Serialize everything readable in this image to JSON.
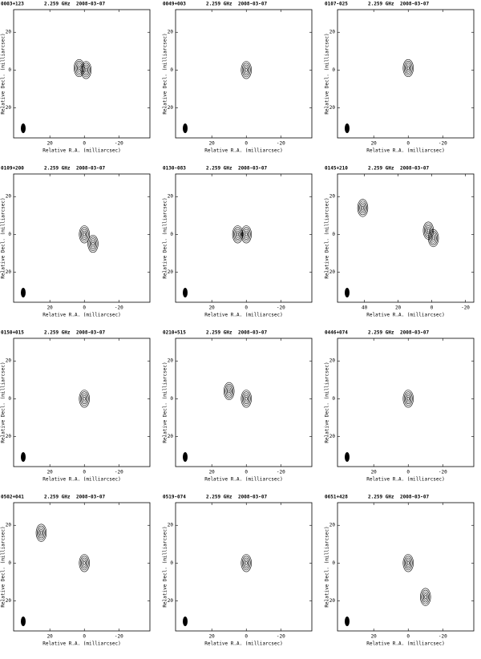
{
  "chart_data": [
    {
      "type": "contour",
      "title": "0003+123",
      "subtitle": "2.259 GHz",
      "date": "2008-03-07",
      "xlabel": "Relative R.A. (milliarcsec)",
      "ylabel": "Relative Decl. (milliarcsec)",
      "xlim": [
        41,
        -38
      ],
      "ylim": [
        -36,
        32
      ],
      "xticks": [
        20,
        0,
        -20
      ],
      "yticks": [
        20,
        0,
        -20
      ],
      "peaks": [
        {
          "x": 3,
          "y": 1
        },
        {
          "x": -1,
          "y": 0
        }
      ]
    },
    {
      "type": "contour",
      "title": "0049+003",
      "subtitle": "2.259 GHz",
      "date": "2008-03-07",
      "xlabel": "Relative R.A. (milliarcsec)",
      "ylabel": "Relative Decl. (milliarcsec)",
      "xlim": [
        41,
        -38
      ],
      "ylim": [
        -36,
        32
      ],
      "xticks": [
        20,
        0,
        -20
      ],
      "yticks": [
        20,
        0,
        -20
      ],
      "peaks": [
        {
          "x": 0,
          "y": 0
        }
      ]
    },
    {
      "type": "contour",
      "title": "0107-025",
      "subtitle": "2.259 GHz",
      "date": "2008-03-07",
      "xlabel": "Relative R.A. (milliarcsec)",
      "ylabel": "Relative Decl. (milliarcsec)",
      "xlim": [
        41,
        -38
      ],
      "ylim": [
        -36,
        32
      ],
      "xticks": [
        20,
        0,
        -20
      ],
      "yticks": [
        20,
        0,
        -20
      ],
      "peaks": [
        {
          "x": 0,
          "y": 1
        }
      ]
    },
    {
      "type": "contour",
      "title": "0109+200",
      "subtitle": "2.259 GHz",
      "date": "2008-03-07",
      "xlabel": "Relative R.A. (milliarcsec)",
      "ylabel": "Relative Decl. (milliarcsec)",
      "xlim": [
        41,
        -38
      ],
      "ylim": [
        -36,
        32
      ],
      "xticks": [
        20,
        0,
        -20
      ],
      "yticks": [
        20,
        0,
        -20
      ],
      "peaks": [
        {
          "x": 0,
          "y": 0
        },
        {
          "x": -5,
          "y": -5
        }
      ]
    },
    {
      "type": "contour",
      "title": "0130-083",
      "subtitle": "2.259 GHz",
      "date": "2008-03-07",
      "xlabel": "Relative R.A. (milliarcsec)",
      "ylabel": "Relative Decl. (milliarcsec)",
      "xlim": [
        41,
        -38
      ],
      "ylim": [
        -36,
        32
      ],
      "xticks": [
        20,
        0,
        -20
      ],
      "yticks": [
        20,
        0,
        -20
      ],
      "peaks": [
        {
          "x": 5,
          "y": 0
        },
        {
          "x": 0,
          "y": 0
        }
      ]
    },
    {
      "type": "contour",
      "title": "0145+210",
      "subtitle": "2.259 GHz",
      "date": "2008-03-07",
      "xlabel": "Relative R.A. (milliarcsec)",
      "ylabel": "Relative Decl. (milliarcsec)",
      "xlim": [
        56,
        -25
      ],
      "ylim": [
        -36,
        32
      ],
      "xticks": [
        40,
        20,
        0,
        -20
      ],
      "yticks": [
        20,
        0,
        -20
      ],
      "peaks": [
        {
          "x": 41,
          "y": 14
        },
        {
          "x": 2,
          "y": 2
        },
        {
          "x": -1,
          "y": -2
        }
      ]
    },
    {
      "type": "contour",
      "title": "0150+015",
      "subtitle": "2.259 GHz",
      "date": "2008-03-07",
      "xlabel": "Relative R.A. (milliarcsec)",
      "ylabel": "Relative Decl. (milliarcsec)",
      "xlim": [
        41,
        -38
      ],
      "ylim": [
        -36,
        32
      ],
      "xticks": [
        20,
        0,
        -20
      ],
      "yticks": [
        20,
        0,
        -20
      ],
      "peaks": [
        {
          "x": 0,
          "y": 0
        }
      ]
    },
    {
      "type": "contour",
      "title": "0210+515",
      "subtitle": "2.259 GHz",
      "date": "2008-03-07",
      "xlabel": "Relative R.A. (milliarcsec)",
      "ylabel": "Relative Decl. (milliarcsec)",
      "xlim": [
        41,
        -38
      ],
      "ylim": [
        -36,
        32
      ],
      "xticks": [
        20,
        0,
        -20
      ],
      "yticks": [
        20,
        0,
        -20
      ],
      "peaks": [
        {
          "x": 10,
          "y": 4
        },
        {
          "x": 0,
          "y": 0
        }
      ]
    },
    {
      "type": "contour",
      "title": "0446+074",
      "subtitle": "2.259 GHz",
      "date": "2008-03-07",
      "xlabel": "Relative R.A. (milliarcsec)",
      "ylabel": "Relative Decl. (milliarcsec)",
      "xlim": [
        41,
        -38
      ],
      "ylim": [
        -36,
        32
      ],
      "xticks": [
        20,
        0,
        -20
      ],
      "yticks": [
        20,
        0,
        -20
      ],
      "peaks": [
        {
          "x": 0,
          "y": 0
        }
      ]
    },
    {
      "type": "contour",
      "title": "0502+041",
      "subtitle": "2.259 GHz",
      "date": "2008-03-07",
      "xlabel": "Relative R.A. (milliarcsec)",
      "ylabel": "Relative Decl. (milliarcsec)",
      "xlim": [
        41,
        -38
      ],
      "ylim": [
        -36,
        32
      ],
      "xticks": [
        20,
        0,
        -20
      ],
      "yticks": [
        20,
        0,
        -20
      ],
      "peaks": [
        {
          "x": 0,
          "y": 0
        },
        {
          "x": 25,
          "y": 16
        }
      ]
    },
    {
      "type": "contour",
      "title": "0519-074",
      "subtitle": "2.259 GHz",
      "date": "2008-03-07",
      "xlabel": "Relative R.A. (milliarcsec)",
      "ylabel": "Relative Decl. (milliarcsec)",
      "xlim": [
        41,
        -38
      ],
      "ylim": [
        -36,
        32
      ],
      "xticks": [
        20,
        0,
        -20
      ],
      "yticks": [
        20,
        0,
        -20
      ],
      "peaks": [
        {
          "x": 0,
          "y": 0
        }
      ]
    },
    {
      "type": "contour",
      "title": "0651+428",
      "subtitle": "2.259 GHz",
      "date": "2008-03-07",
      "xlabel": "Relative R.A. (milliarcsec)",
      "ylabel": "Relative Decl. (milliarcsec)",
      "xlim": [
        41,
        -38
      ],
      "ylim": [
        -36,
        32
      ],
      "xticks": [
        20,
        0,
        -20
      ],
      "yticks": [
        20,
        0,
        -20
      ],
      "peaks": [
        {
          "x": 0,
          "y": 0
        },
        {
          "x": -10,
          "y": -18
        }
      ]
    }
  ]
}
